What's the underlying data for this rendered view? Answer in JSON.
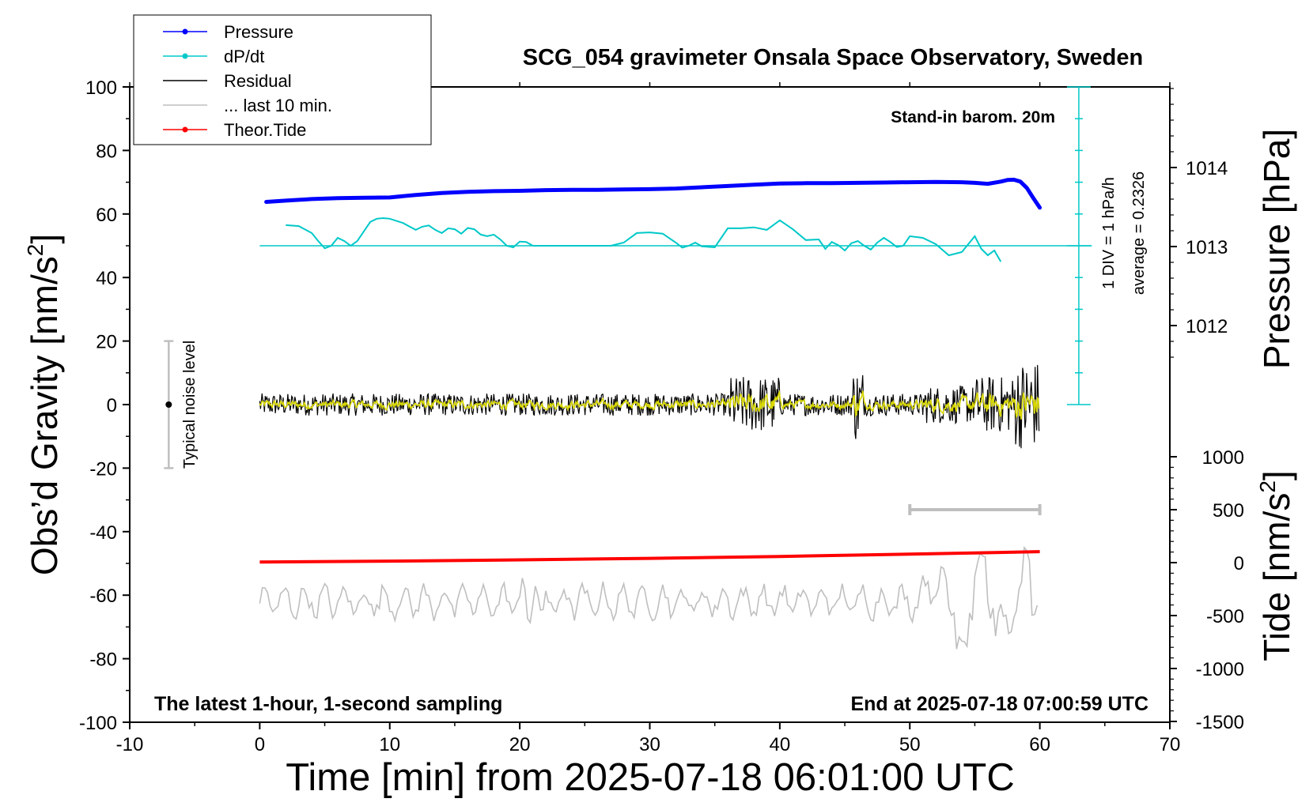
{
  "chart_data": {
    "type": "line",
    "title": "SCG_054 gravimeter Onsala Space Observatory, Sweden",
    "xlabel": "Time [min] from 2025-07-18 06:01:00 UTC",
    "ylabel_left_main": "Obs’d Gravity [nm/s",
    "ylabel_left_sup": "2",
    "ylabel_left_end": "]",
    "ylabel_right_top": "Pressure [hPa]",
    "ylabel_right_bottom_main": "Tide [nm/s",
    "ylabel_right_bottom_sup": "2",
    "ylabel_right_bottom_end": "]",
    "xlim": [
      -10,
      70
    ],
    "ylim": [
      -100,
      100
    ],
    "x_ticks": [
      "-10",
      "0",
      "10",
      "20",
      "30",
      "40",
      "50",
      "60",
      "70"
    ],
    "y_ticks": [
      "100",
      "80",
      "60",
      "40",
      "20",
      "0",
      "-20",
      "-40",
      "-60",
      "-80",
      "-100"
    ],
    "pressure_ticks": [
      "1014",
      "1013",
      "1012"
    ],
    "tide_ticks": [
      "1000",
      "500",
      "0",
      "-500",
      "-1000",
      "-1500"
    ],
    "legend": [
      {
        "label": "Pressure",
        "color": "#0000ff",
        "marker": true
      },
      {
        "label": "dP/dt",
        "color": "#00c8c8",
        "marker": true
      },
      {
        "label": "Residual",
        "color": "#000000",
        "marker": false
      },
      {
        "label": "... last 10 min.",
        "color": "#bfbfbf",
        "marker": false
      },
      {
        "label": "Theor.Tide",
        "color": "#ff0000",
        "marker": true
      }
    ],
    "annotations": {
      "barometer": "Stand-in barom. 20m",
      "div": "1 DIV = 1 hPa/h",
      "average": "average = 0.2326",
      "noise": "Typical noise level",
      "latest": "The latest 1-hour, 1-second sampling",
      "end": "End at 2025-07-18 07:00:59 UTC"
    },
    "series": [
      {
        "name": "Pressure",
        "color": "#0000ff",
        "x": [
          0.5,
          2,
          4,
          6,
          8,
          10,
          12,
          14,
          16,
          18,
          20,
          22,
          24,
          26,
          28,
          30,
          32,
          34,
          36,
          38,
          40,
          42,
          44,
          46,
          48,
          50,
          52,
          54,
          55,
          56,
          57,
          57.5,
          58,
          58.5,
          59,
          59.5,
          60
        ],
        "y": [
          63.8,
          64.2,
          64.7,
          65.0,
          65.1,
          65.2,
          66.0,
          66.6,
          67.0,
          67.2,
          67.3,
          67.5,
          67.6,
          67.6,
          67.7,
          67.8,
          68.0,
          68.4,
          68.8,
          69.2,
          69.6,
          69.7,
          69.7,
          69.8,
          69.9,
          70.0,
          70.1,
          70.0,
          69.8,
          69.5,
          70.2,
          70.7,
          70.8,
          70.2,
          68.2,
          65.0,
          62.0
        ]
      },
      {
        "name": "dP/dt",
        "color": "#00c8c8",
        "x": [
          2,
          3,
          4,
          4.5,
          5,
          5.5,
          6,
          6.5,
          7,
          7.5,
          8,
          8.5,
          9,
          9.5,
          10,
          11,
          12,
          12.5,
          13,
          13.5,
          14,
          14.5,
          15,
          15.5,
          16,
          16.5,
          17,
          17.5,
          18,
          18.5,
          19,
          19.5,
          20,
          20.5,
          21,
          22,
          23,
          24,
          25,
          26,
          27,
          28,
          29,
          30,
          31,
          32,
          32.5,
          33,
          33.5,
          34,
          35,
          36,
          37,
          38,
          39,
          40,
          41,
          42,
          43,
          43.5,
          44,
          44.5,
          45,
          45.5,
          46,
          46.5,
          47,
          47.5,
          48,
          48.5,
          49,
          49.5,
          50,
          51,
          52,
          53,
          54,
          55,
          55.5,
          56,
          56.5,
          57
        ],
        "y": [
          56.5,
          56.2,
          54.0,
          51.5,
          49.2,
          50.0,
          52.5,
          51.5,
          50.0,
          51.5,
          54.5,
          57.5,
          58.5,
          58.7,
          58.5,
          57.2,
          55.0,
          56.0,
          56.4,
          55.0,
          54.0,
          55.5,
          55.2,
          53.8,
          55.6,
          55.2,
          53.5,
          53.0,
          53.5,
          52.0,
          50.0,
          49.5,
          51.3,
          51.2,
          50.0,
          50.0,
          50.0,
          50.0,
          50.0,
          50.0,
          50.0,
          51.0,
          54.0,
          54.2,
          53.8,
          51.0,
          49.4,
          50.0,
          51.0,
          49.8,
          49.5,
          55.5,
          55.5,
          55.8,
          55.0,
          58.0,
          55.2,
          51.8,
          52.0,
          49.0,
          51.2,
          50.2,
          48.5,
          50.8,
          51.5,
          50.0,
          48.8,
          51.0,
          52.5,
          51.2,
          49.6,
          50.0,
          53.0,
          52.5,
          50.5,
          47.0,
          48.0,
          53.0,
          49.0,
          47.0,
          48.5,
          45.0
        ]
      },
      {
        "name": "Residual",
        "color": "#000000",
        "x_range": [
          0,
          60
        ],
        "y_center": 0,
        "amplitude_note": "noise ±3 to ±5, growing to ±10 near 38–40 min and ±15 near 58–60 min"
      },
      {
        "name": "... last 10 min.",
        "color": "#bfbfbf",
        "x_range": [
          0,
          60
        ],
        "y_range": [
          -81,
          -45
        ],
        "bar": {
          "x_start": 50,
          "x_end": 60,
          "tide_value": 500
        }
      },
      {
        "name": "Theor.Tide",
        "color": "#ff0000",
        "x": [
          0,
          10,
          20,
          30,
          40,
          50,
          55,
          60
        ],
        "tide": [
          5,
          14,
          26,
          40,
          58,
          80,
          92,
          104
        ]
      }
    ],
    "noise_bar": {
      "x": -7,
      "y_min": -20,
      "y_max": 20,
      "y_mid": 0
    },
    "dpdt_scale": {
      "x": 63,
      "zero_level": 0,
      "top_level": 100,
      "baseline": 50
    },
    "grid": false
  }
}
